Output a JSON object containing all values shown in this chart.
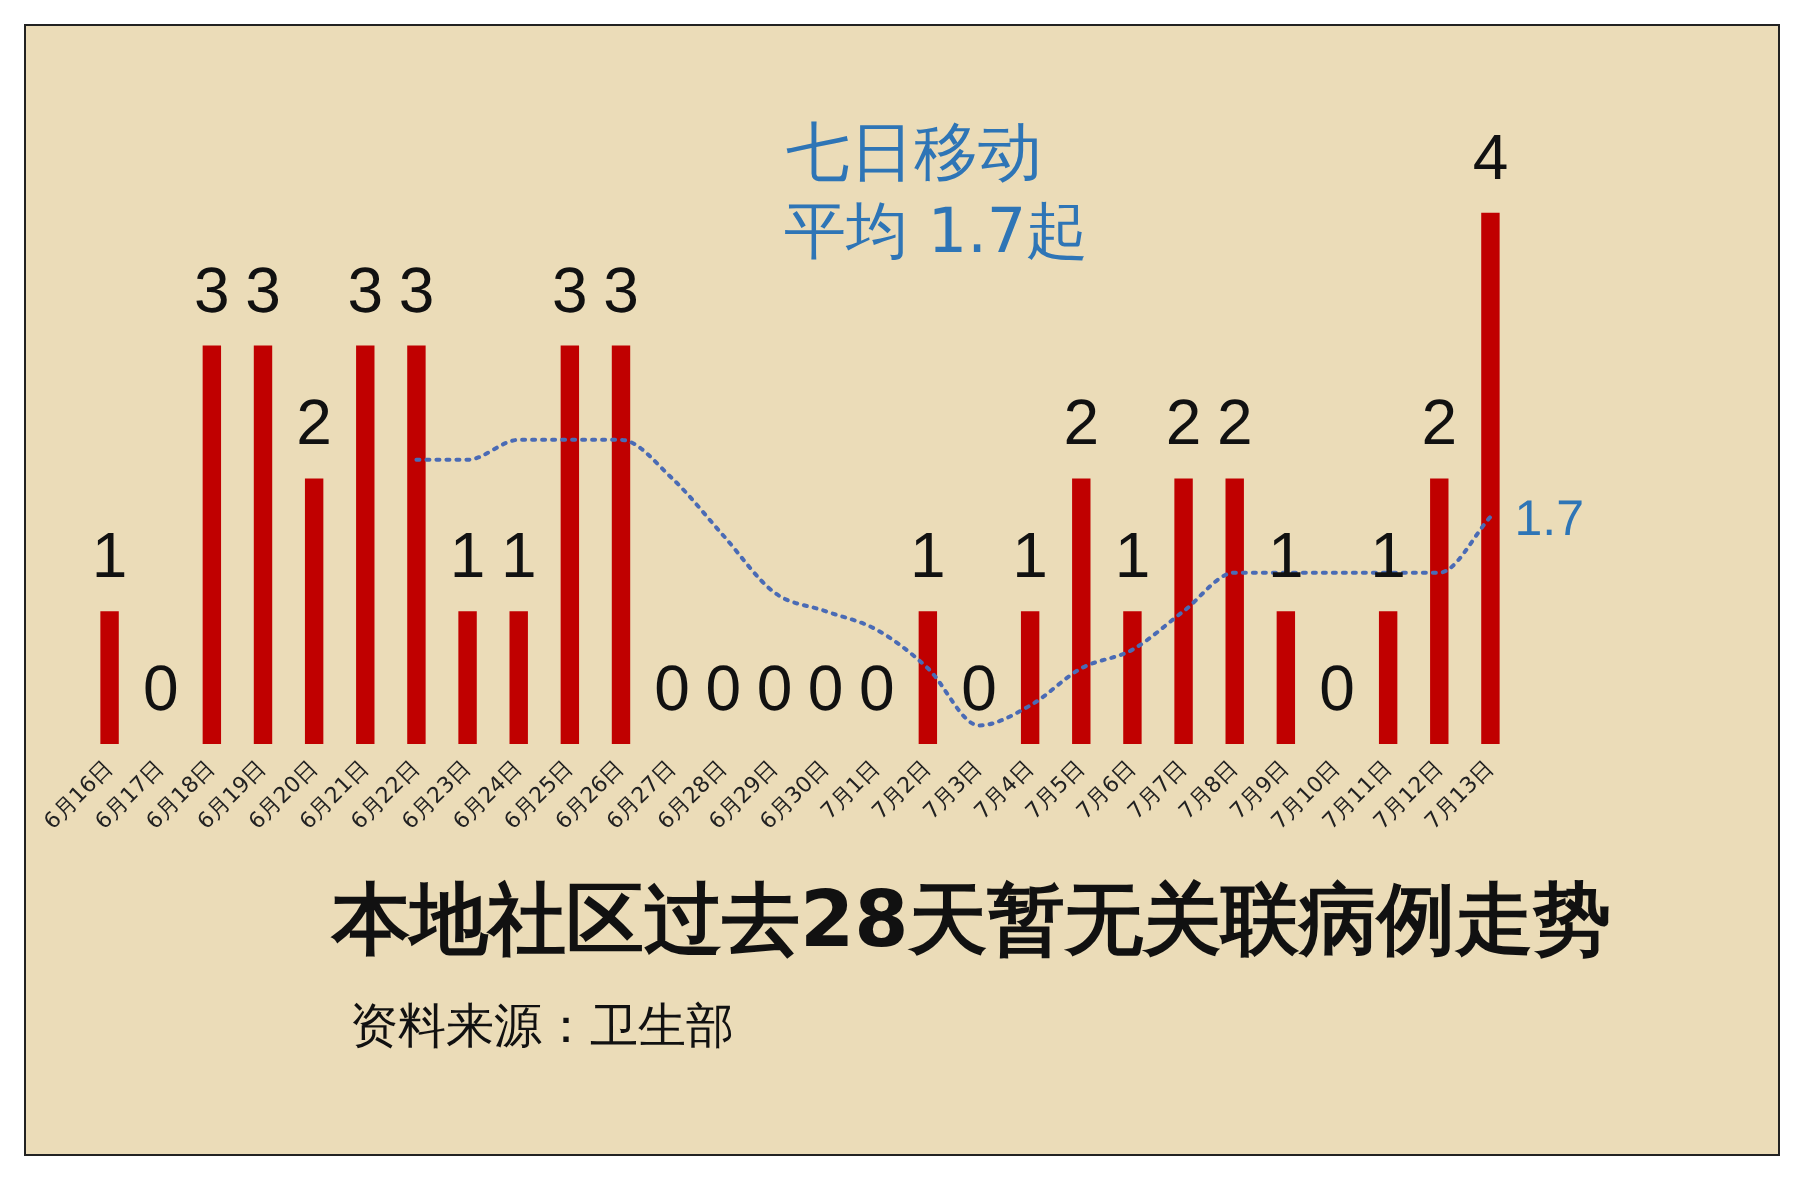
{
  "chart_data": {
    "type": "bar",
    "title": "本地社区过去28天暂无关联病例走势",
    "annotations": [
      "七日移动",
      "平均 1.7起",
      "资料来源：卫生部"
    ],
    "categories": [
      "6月16日",
      "6月17日",
      "6月18日",
      "6月19日",
      "6月20日",
      "6月21日",
      "6月22日",
      "6月23日",
      "6月24日",
      "6月25日",
      "6月26日",
      "6月27日",
      "6月28日",
      "6月29日",
      "6月30日",
      "7月1日",
      "7月2日",
      "7月3日",
      "7月4日",
      "7月5日",
      "7月6日",
      "7月7日",
      "7月8日",
      "7月9日",
      "7月10日",
      "7月11日",
      "7月12日",
      "7月13日"
    ],
    "series": [
      {
        "color": "#c00000",
        "values": [
          1,
          0,
          3,
          3,
          2,
          3,
          3,
          1,
          1,
          3,
          3,
          0,
          0,
          0,
          0,
          0,
          1,
          0,
          1,
          2,
          1,
          2,
          2,
          1,
          0,
          1,
          2,
          4
        ],
        "value_labels": [
          "1",
          "0",
          "3",
          "3",
          "2",
          "3",
          "3",
          "1",
          "1",
          "3",
          "3",
          "0",
          "0",
          "0",
          "0",
          "0",
          "1",
          "0",
          "1",
          "2",
          "1",
          "2",
          "2",
          "1",
          "0",
          "1",
          "2",
          "4"
        ]
      },
      {
        "type": "line",
        "color": "#4a6bb5",
        "line_style": "dotted",
        "marker": "none",
        "values": [
          null,
          null,
          null,
          null,
          null,
          null,
          2.14,
          2.14,
          2.29,
          2.29,
          2.29,
          2.0,
          1.57,
          1.14,
          1.0,
          0.86,
          0.57,
          0.14,
          0.29,
          0.57,
          0.71,
          1.0,
          1.29,
          1.29,
          1.29,
          1.29,
          1.29,
          1.71
        ],
        "value_labels": [
          null,
          null,
          null,
          null,
          null,
          null,
          null,
          null,
          null,
          null,
          null,
          null,
          null,
          null,
          null,
          null,
          null,
          null,
          null,
          null,
          null,
          null,
          null,
          null,
          null,
          null,
          null,
          "1.7"
        ]
      }
    ],
    "tick_labels": "x"
  }
}
